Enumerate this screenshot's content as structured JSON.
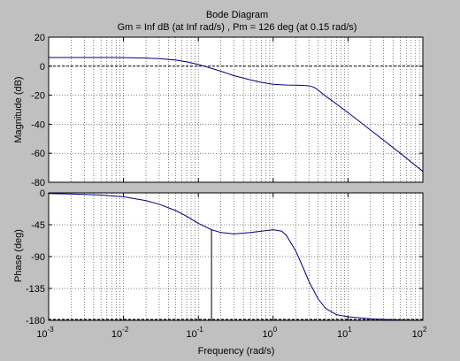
{
  "window": {
    "background": "#c0c0c0",
    "axes_background": "#ffffff"
  },
  "chart_data": {
    "type": "line",
    "title": "Bode Diagram",
    "subtitle": "Gm = Inf dB (at Inf rad/s) ,  Pm = 126 deg (at 0.15 rad/s)",
    "xlabel": "Frequency  (rad/s)",
    "xscale": "log",
    "xlim": [
      0.001,
      100
    ],
    "x_tick_labels": [
      {
        "base": "10",
        "exp": "-3"
      },
      {
        "base": "10",
        "exp": "-2"
      },
      {
        "base": "10",
        "exp": "-1"
      },
      {
        "base": "10",
        "exp": "0"
      },
      {
        "base": "10",
        "exp": "1"
      },
      {
        "base": "10",
        "exp": "2"
      }
    ],
    "grid": true,
    "line_color": "#000080",
    "magnitude": {
      "ylabel": "Magnitude (dB)",
      "ylim": [
        -80,
        20
      ],
      "yticks": [
        "20",
        "0",
        "-20",
        "-40",
        "-60",
        "-80"
      ],
      "series": [
        {
          "x": [
            0.001,
            0.002,
            0.005,
            0.01,
            0.02,
            0.03,
            0.05,
            0.07,
            0.1,
            0.15,
            0.2,
            0.3,
            0.5,
            0.7,
            1,
            1.5,
            2,
            2.5,
            3,
            3.5,
            4,
            5,
            7,
            10,
            20,
            50,
            100
          ],
          "values": [
            6,
            6,
            6,
            5.9,
            5.6,
            5.2,
            4.2,
            3,
            1.2,
            -1.5,
            -3.5,
            -6.5,
            -9.5,
            -11.2,
            -12.5,
            -13,
            -13.1,
            -13.2,
            -13.5,
            -14.5,
            -16.5,
            -20.5,
            -26,
            -32,
            -44,
            -60,
            -72.5
          ]
        }
      ]
    },
    "phase": {
      "ylabel": "Phase (deg)",
      "ylim": [
        -180,
        0
      ],
      "yticks": [
        "0",
        "-45",
        "-90",
        "-135",
        "-180"
      ],
      "series": [
        {
          "x": [
            0.001,
            0.002,
            0.005,
            0.01,
            0.02,
            0.03,
            0.05,
            0.07,
            0.1,
            0.15,
            0.2,
            0.3,
            0.5,
            0.7,
            1,
            1.3,
            1.5,
            2,
            2.5,
            3,
            4,
            5,
            7,
            10,
            20,
            50,
            100
          ],
          "values": [
            -1,
            -1.5,
            -3,
            -5.5,
            -11,
            -16,
            -25,
            -33,
            -43,
            -52,
            -56,
            -58,
            -56,
            -54,
            -52,
            -54,
            -60,
            -82,
            -105,
            -125,
            -150,
            -163,
            -172,
            -175,
            -178,
            -179.5,
            -180
          ]
        }
      ]
    },
    "margin_markers": {
      "crossover_frequency": 0.15,
      "zero_db_level": 0,
      "minus_180_level": -180
    }
  }
}
